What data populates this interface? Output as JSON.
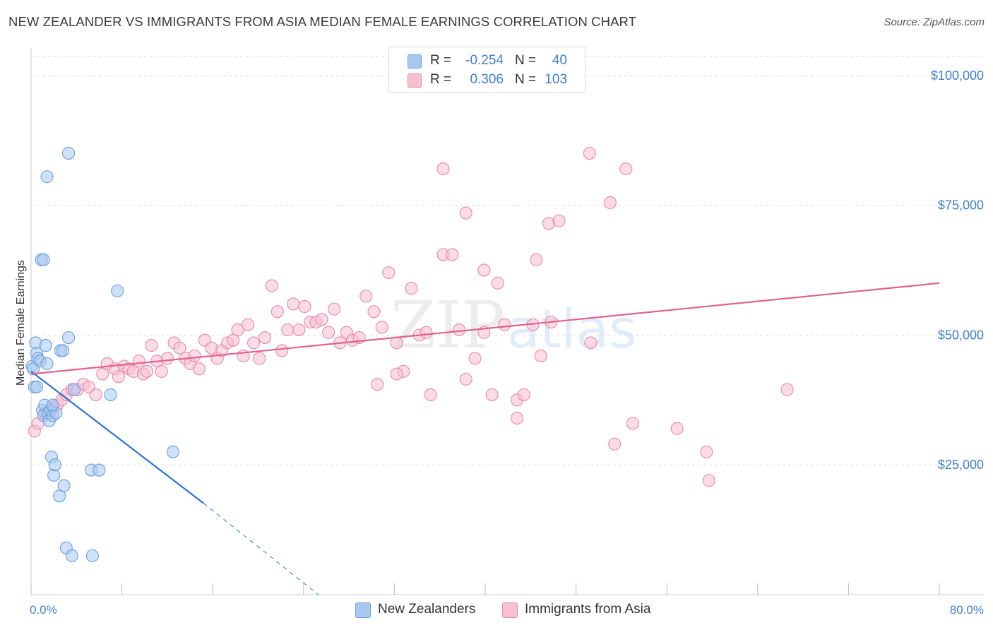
{
  "title": "NEW ZEALANDER VS IMMIGRANTS FROM ASIA MEDIAN FEMALE EARNINGS CORRELATION CHART",
  "source": "Source: ZipAtlas.com",
  "watermark": {
    "zip": "ZIP",
    "atlas": "atlas"
  },
  "legend": {
    "rows": [
      {
        "r_label": "R =",
        "r_value": "-0.254",
        "n_label": "N =",
        "n_value": "40",
        "color": "#a8c8f0",
        "border": "#6a9fe0"
      },
      {
        "r_label": "R =",
        "r_value": "0.306",
        "n_label": "N =",
        "n_value": "103",
        "color": "#f8c0d0",
        "border": "#e888a8"
      }
    ]
  },
  "bottom_legend": [
    {
      "label": "New Zealanders",
      "color": "#a8c8f0",
      "border": "#6a9fe0"
    },
    {
      "label": "Immigrants from Asia",
      "color": "#f8c0d0",
      "border": "#e888a8"
    }
  ],
  "chart_data": {
    "type": "scatter",
    "title": "NEW ZEALANDER VS IMMIGRANTS FROM ASIA MEDIAN FEMALE EARNINGS CORRELATION CHART",
    "xlabel": "",
    "ylabel": "Median Female Earnings",
    "xlim": [
      0,
      80
    ],
    "ylim": [
      0,
      105000
    ],
    "x_tick_labels": [
      "0.0%",
      "80.0%"
    ],
    "y_ticks": [
      25000,
      50000,
      75000,
      100000
    ],
    "y_tick_labels": [
      "$25,000",
      "$50,000",
      "$75,000",
      "$100,000"
    ],
    "series": [
      {
        "name": "New Zealanders",
        "color": "#6a9fe0",
        "fill": "#a8c8f0",
        "trend": {
          "x": [
            0,
            15.2
          ],
          "y": [
            43000,
            17600
          ],
          "dashed_to": [
            25.3,
            0
          ]
        },
        "points": [
          [
            0.1,
            44000
          ],
          [
            0.2,
            43500
          ],
          [
            0.3,
            40000
          ],
          [
            0.4,
            48500
          ],
          [
            0.5,
            46500
          ],
          [
            0.6,
            45500
          ],
          [
            0.8,
            45000
          ],
          [
            1.0,
            35500
          ],
          [
            1.1,
            34500
          ],
          [
            1.2,
            36500
          ],
          [
            1.3,
            48000
          ],
          [
            1.4,
            44500
          ],
          [
            1.5,
            35000
          ],
          [
            1.6,
            33500
          ],
          [
            1.7,
            35500
          ],
          [
            1.8,
            26500
          ],
          [
            1.9,
            34500
          ],
          [
            2.0,
            23000
          ],
          [
            2.1,
            25000
          ],
          [
            2.6,
            47000
          ],
          [
            2.8,
            47000
          ],
          [
            2.5,
            19000
          ],
          [
            2.9,
            21000
          ],
          [
            3.1,
            9000
          ],
          [
            3.6,
            7500
          ],
          [
            3.3,
            85000
          ],
          [
            1.4,
            80500
          ],
          [
            0.9,
            64500
          ],
          [
            1.1,
            64500
          ],
          [
            3.3,
            49500
          ],
          [
            7.6,
            58500
          ],
          [
            5.3,
            24000
          ],
          [
            6.0,
            24000
          ],
          [
            7.0,
            38500
          ],
          [
            12.5,
            27500
          ],
          [
            5.4,
            7500
          ],
          [
            0.5,
            40000
          ],
          [
            2.2,
            35000
          ],
          [
            1.9,
            36500
          ],
          [
            3.8,
            39500
          ]
        ]
      },
      {
        "name": "Immigrants from Asia",
        "color": "#e888a8",
        "fill": "#f8c0d0",
        "trend": {
          "x": [
            0,
            80
          ],
          "y": [
            42500,
            60000
          ]
        },
        "points": [
          [
            0.3,
            31500
          ],
          [
            0.6,
            33000
          ],
          [
            1.2,
            35000
          ],
          [
            1.8,
            36000
          ],
          [
            2.3,
            36500
          ],
          [
            2.7,
            37500
          ],
          [
            3.1,
            38500
          ],
          [
            3.6,
            39500
          ],
          [
            4.1,
            39500
          ],
          [
            4.6,
            40500
          ],
          [
            5.1,
            40000
          ],
          [
            5.7,
            38500
          ],
          [
            6.3,
            42500
          ],
          [
            6.7,
            44500
          ],
          [
            7.4,
            43500
          ],
          [
            7.7,
            42000
          ],
          [
            8.2,
            44000
          ],
          [
            8.6,
            43500
          ],
          [
            9.0,
            43000
          ],
          [
            9.5,
            45000
          ],
          [
            9.9,
            42500
          ],
          [
            10.2,
            43000
          ],
          [
            10.6,
            48000
          ],
          [
            11.1,
            45000
          ],
          [
            11.5,
            43000
          ],
          [
            12.0,
            45500
          ],
          [
            12.6,
            48500
          ],
          [
            13.1,
            47500
          ],
          [
            13.6,
            45500
          ],
          [
            14.0,
            44500
          ],
          [
            14.4,
            46000
          ],
          [
            14.8,
            43500
          ],
          [
            15.3,
            49000
          ],
          [
            15.9,
            47500
          ],
          [
            16.4,
            45500
          ],
          [
            16.8,
            47000
          ],
          [
            17.3,
            48500
          ],
          [
            17.8,
            49000
          ],
          [
            18.2,
            51000
          ],
          [
            18.7,
            46000
          ],
          [
            19.1,
            52000
          ],
          [
            19.6,
            48500
          ],
          [
            20.1,
            45500
          ],
          [
            20.6,
            49500
          ],
          [
            21.2,
            59500
          ],
          [
            21.7,
            54500
          ],
          [
            22.1,
            47000
          ],
          [
            22.6,
            51000
          ],
          [
            23.1,
            56000
          ],
          [
            23.6,
            51000
          ],
          [
            24.1,
            55500
          ],
          [
            24.6,
            52500
          ],
          [
            25.1,
            52500
          ],
          [
            25.6,
            53000
          ],
          [
            26.2,
            50500
          ],
          [
            26.7,
            55000
          ],
          [
            27.2,
            48500
          ],
          [
            27.8,
            50500
          ],
          [
            28.3,
            49000
          ],
          [
            28.9,
            49500
          ],
          [
            29.5,
            57500
          ],
          [
            30.2,
            54500
          ],
          [
            30.9,
            51500
          ],
          [
            31.5,
            62000
          ],
          [
            32.2,
            48500
          ],
          [
            32.8,
            43000
          ],
          [
            33.5,
            59000
          ],
          [
            34.2,
            50000
          ],
          [
            34.8,
            50500
          ],
          [
            35.2,
            38500
          ],
          [
            36.3,
            65500
          ],
          [
            37.1,
            65500
          ],
          [
            37.7,
            51000
          ],
          [
            38.3,
            41500
          ],
          [
            39.1,
            45500
          ],
          [
            39.9,
            62500
          ],
          [
            40.6,
            38500
          ],
          [
            41.1,
            60000
          ],
          [
            41.7,
            52000
          ],
          [
            42.8,
            37500
          ],
          [
            43.4,
            38500
          ],
          [
            44.2,
            52000
          ],
          [
            44.9,
            46000
          ],
          [
            45.6,
            71500
          ],
          [
            45.8,
            52500
          ],
          [
            46.5,
            72000
          ],
          [
            36.3,
            82000
          ],
          [
            38.3,
            73500
          ],
          [
            49.2,
            85000
          ],
          [
            51.0,
            75500
          ],
          [
            52.4,
            82000
          ],
          [
            49.3,
            48500
          ],
          [
            51.4,
            29000
          ],
          [
            53.0,
            33000
          ],
          [
            56.9,
            32000
          ],
          [
            59.5,
            27500
          ],
          [
            59.7,
            22000
          ],
          [
            66.6,
            39500
          ],
          [
            42.8,
            34000
          ],
          [
            44.5,
            64500
          ],
          [
            39.9,
            50500
          ],
          [
            32.2,
            42500
          ],
          [
            30.5,
            40500
          ]
        ]
      }
    ]
  }
}
